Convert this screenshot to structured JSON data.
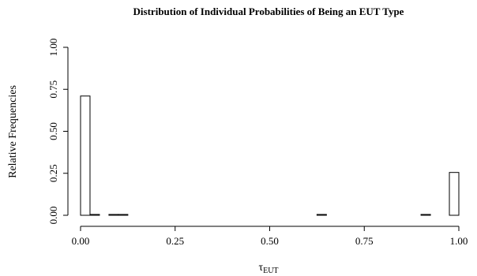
{
  "chart_data": {
    "type": "bar",
    "title": "Distribution of Individual Probabilities of Being an EUT Type",
    "xlabel": "τ",
    "xlabel_subscript": "EUT",
    "ylabel": "Relative Frequencies",
    "xlim": [
      0,
      1
    ],
    "ylim": [
      0,
      1
    ],
    "x_ticks": [
      "0.00",
      "0.25",
      "0.50",
      "0.75",
      "1.00"
    ],
    "y_ticks": [
      "0.00",
      "0.25",
      "0.50",
      "0.75",
      "1.00"
    ],
    "bin_width": 0.025,
    "bins": [
      {
        "x0": 0.0,
        "value": 0.71
      },
      {
        "x0": 0.025,
        "value": 0.005
      },
      {
        "x0": 0.075,
        "value": 0.005
      },
      {
        "x0": 0.1,
        "value": 0.005
      },
      {
        "x0": 0.625,
        "value": 0.005
      },
      {
        "x0": 0.9,
        "value": 0.005
      },
      {
        "x0": 0.975,
        "value": 0.255
      }
    ],
    "grid": false,
    "bar_fill": "#ffffff",
    "bar_stroke": "#000000"
  }
}
